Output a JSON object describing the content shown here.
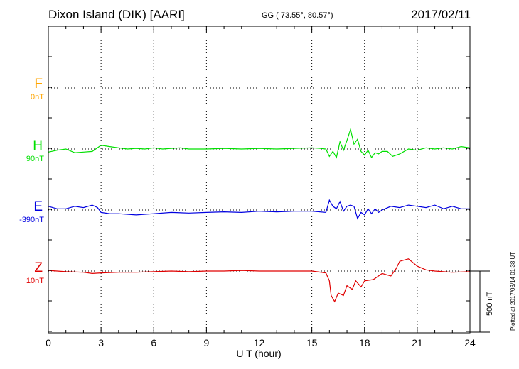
{
  "header": {
    "station": "Dixon Island (DIK)  [AARI]",
    "coords": "GG ( 73.55°,  80.57°)",
    "date": "2017/02/11"
  },
  "footer": {
    "plotted": "Plotted at 2017/03/14 01:38 UT"
  },
  "chart_data": {
    "type": "line",
    "xlabel": "U T (hour)",
    "xlim": [
      0,
      24
    ],
    "xticks": [
      0,
      3,
      6,
      9,
      12,
      15,
      18,
      21,
      24
    ],
    "scale_bar_label": "500 nT",
    "series": [
      {
        "name": "F",
        "baseline": "0nT",
        "color": "#ffa500",
        "x": [],
        "y": []
      },
      {
        "name": "H",
        "baseline": "90nT",
        "color": "#00e000",
        "x": [
          0,
          0.5,
          1,
          1.5,
          2,
          2.5,
          3,
          3.5,
          4,
          4.5,
          5,
          5.5,
          6,
          6.5,
          7,
          7.5,
          8,
          9,
          10,
          11,
          12,
          13,
          14,
          15,
          15.5,
          15.8,
          16,
          16.2,
          16.4,
          16.6,
          16.8,
          17,
          17.2,
          17.4,
          17.6,
          17.8,
          18,
          18.2,
          18.4,
          18.6,
          18.8,
          19,
          19.3,
          19.6,
          20,
          20.5,
          21,
          21.5,
          22,
          22.5,
          23,
          23.5,
          24
        ],
        "y": [
          -25,
          -10,
          0,
          -30,
          -25,
          -20,
          30,
          20,
          10,
          0,
          5,
          0,
          10,
          0,
          5,
          10,
          0,
          0,
          5,
          0,
          5,
          0,
          5,
          10,
          5,
          0,
          -60,
          -20,
          -70,
          60,
          -10,
          70,
          160,
          40,
          80,
          -20,
          -50,
          -10,
          -70,
          -30,
          -40,
          -20,
          -20,
          -60,
          -40,
          0,
          -10,
          10,
          0,
          10,
          0,
          20,
          10
        ]
      },
      {
        "name": "E",
        "baseline": "-390nT",
        "color": "#0000e0",
        "x": [
          0,
          0.5,
          1,
          1.5,
          2,
          2.5,
          2.8,
          3,
          3.5,
          4,
          5,
          6,
          7,
          8,
          9,
          10,
          11,
          12,
          13,
          14,
          15,
          15.8,
          16,
          16.2,
          16.4,
          16.6,
          16.8,
          17,
          17.2,
          17.4,
          17.6,
          17.8,
          18,
          18.2,
          18.4,
          18.6,
          18.8,
          19,
          19.5,
          20,
          20.5,
          21,
          21.5,
          22,
          22.5,
          23,
          23.5,
          24
        ],
        "y": [
          30,
          10,
          10,
          30,
          20,
          40,
          20,
          -20,
          -30,
          -30,
          -40,
          -30,
          -20,
          -25,
          -20,
          -15,
          -20,
          -10,
          -15,
          -10,
          -10,
          -20,
          80,
          30,
          10,
          70,
          -10,
          30,
          40,
          30,
          -70,
          -20,
          -40,
          10,
          -30,
          10,
          -20,
          0,
          30,
          20,
          40,
          30,
          20,
          40,
          10,
          30,
          10,
          10
        ]
      },
      {
        "name": "Z",
        "baseline": "10nT",
        "color": "#e00000",
        "x": [
          0,
          0.5,
          1,
          2,
          2.5,
          3,
          4,
          5,
          6,
          7,
          8,
          9,
          10,
          11,
          12,
          13,
          14,
          15,
          15.8,
          16,
          16.1,
          16.3,
          16.5,
          16.8,
          17,
          17.3,
          17.5,
          17.8,
          18,
          18.5,
          19,
          19.5,
          19.8,
          20,
          20.5,
          21,
          21.5,
          22,
          23,
          24
        ],
        "y": [
          5,
          0,
          -5,
          -10,
          -20,
          -15,
          -10,
          -10,
          -5,
          0,
          -5,
          0,
          0,
          5,
          0,
          0,
          0,
          0,
          -15,
          -80,
          -200,
          -250,
          -180,
          -200,
          -120,
          -150,
          -80,
          -130,
          -80,
          -70,
          -20,
          -40,
          20,
          80,
          100,
          40,
          10,
          0,
          -10,
          -5
        ]
      }
    ]
  }
}
